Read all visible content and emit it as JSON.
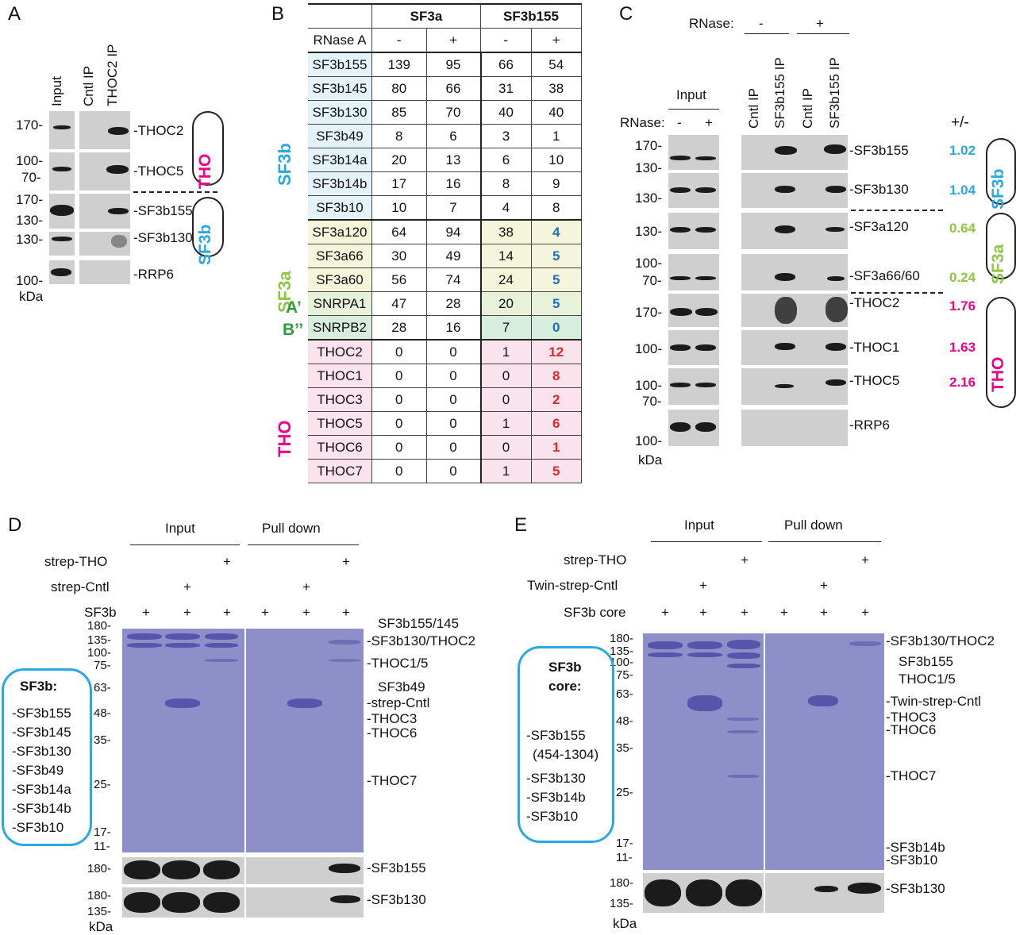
{
  "colors": {
    "sf3b": "#29a9e1",
    "sf3a": "#8dc63f",
    "tho": "#ec008c",
    "gel": "#8c8fc8",
    "red": "#e0262b",
    "blue": "#1a6fc4"
  },
  "panelA": {
    "letter": "A",
    "lanes": [
      "Input",
      "Cntl IP",
      "THOC2 IP"
    ],
    "markers": [
      "170-",
      "100-",
      "70-",
      "170-",
      "130-",
      "130-",
      "100-"
    ],
    "unit": "kDa",
    "bands": [
      "-THOC2",
      "-THOC5",
      "-SF3b155",
      "-SF3b130",
      "-RRP6"
    ],
    "groups": [
      "THO",
      "SF3b"
    ]
  },
  "panelB": {
    "letter": "B",
    "header": [
      "SF3a",
      "SF3b155"
    ],
    "rnase_label": "RNase A",
    "rnase": [
      "-",
      "+",
      "-",
      "+"
    ],
    "groups": [
      "SF3b",
      "SF3a",
      "A’",
      "B’’",
      "THO"
    ],
    "rows": [
      {
        "name": "SF3b155",
        "v": [
          "139",
          "95",
          "66",
          "54"
        ]
      },
      {
        "name": "SF3b145",
        "v": [
          "80",
          "66",
          "31",
          "38"
        ]
      },
      {
        "name": "SF3b130",
        "v": [
          "85",
          "70",
          "40",
          "40"
        ]
      },
      {
        "name": "SF3b49",
        "v": [
          "8",
          "6",
          "3",
          "1"
        ]
      },
      {
        "name": "SF3b14a",
        "v": [
          "20",
          "13",
          "6",
          "10"
        ]
      },
      {
        "name": "SF3b14b",
        "v": [
          "17",
          "16",
          "8",
          "9"
        ]
      },
      {
        "name": "SF3b10",
        "v": [
          "10",
          "7",
          "4",
          "8"
        ]
      },
      {
        "name": "SF3a120",
        "v": [
          "64",
          "94",
          "38",
          "4"
        ]
      },
      {
        "name": "SF3a66",
        "v": [
          "30",
          "49",
          "14",
          "5"
        ]
      },
      {
        "name": "SF3a60",
        "v": [
          "56",
          "74",
          "24",
          "5"
        ]
      },
      {
        "name": "SNRPA1",
        "v": [
          "47",
          "28",
          "20",
          "5"
        ]
      },
      {
        "name": "SNRPB2",
        "v": [
          "28",
          "16",
          "7",
          "0"
        ]
      },
      {
        "name": "THOC2",
        "v": [
          "0",
          "0",
          "1",
          "12"
        ]
      },
      {
        "name": "THOC1",
        "v": [
          "0",
          "0",
          "0",
          "8"
        ]
      },
      {
        "name": "THOC3",
        "v": [
          "0",
          "0",
          "0",
          "2"
        ]
      },
      {
        "name": "THOC5",
        "v": [
          "0",
          "0",
          "1",
          "6"
        ]
      },
      {
        "name": "THOC6",
        "v": [
          "0",
          "0",
          "0",
          "1"
        ]
      },
      {
        "name": "THOC7",
        "v": [
          "0",
          "0",
          "1",
          "5"
        ]
      }
    ]
  },
  "panelC": {
    "letter": "C",
    "rnase_label": "RNase:",
    "rnase_top": [
      "-",
      "+"
    ],
    "input_label": "Input",
    "rnase_input_label": "RNase:",
    "rnase_input": [
      "-",
      "+"
    ],
    "lanes": [
      "Cntl IP",
      "SF3b155 IP",
      "Cntl IP",
      "SF3b155 IP"
    ],
    "pm_label": "+/-",
    "markers": [
      "170-",
      "130-",
      "130-",
      "130-",
      "100-",
      "70-",
      "170-",
      "100-",
      "100-",
      "70-",
      "100-"
    ],
    "unit": "kDa",
    "bands": [
      "-SF3b155",
      "-SF3b130",
      "-SF3a120",
      "-SF3a66/60",
      "-THOC2",
      "-THOC1",
      "-THOC5",
      "-RRP6"
    ],
    "ratios": [
      "1.02",
      "1.04",
      "0.64",
      "0.24",
      "1.76",
      "1.63",
      "2.16"
    ],
    "groups": [
      "SF3b",
      "SF3a",
      "THO"
    ]
  },
  "panelD": {
    "letter": "D",
    "headers": [
      "Input",
      "Pull down"
    ],
    "rows": [
      {
        "label": "strep-THO",
        "marks": [
          "",
          "",
          "+",
          "",
          "",
          "+"
        ]
      },
      {
        "label": "strep-Cntl",
        "marks": [
          "",
          "+",
          "",
          "",
          "+",
          ""
        ]
      },
      {
        "label": "SF3b",
        "marks": [
          "+",
          "+",
          "+",
          "+",
          "+",
          "+"
        ]
      }
    ],
    "markers": [
      "180-",
      "135-",
      "100-",
      "75-",
      "63-",
      "48-",
      "35-",
      "25-",
      "17-",
      "11-"
    ],
    "blot_markers": [
      "180-",
      "180-",
      "135-"
    ],
    "unit": "kDa",
    "bands": [
      "SF3b155/145",
      "-SF3b130/THOC2",
      "-THOC1/5",
      "SF3b49",
      "-strep-Cntl",
      "-THOC3",
      "-THOC6",
      "-THOC7"
    ],
    "blot_bands": [
      "-SF3b155",
      "-SF3b130"
    ],
    "box_title": "SF3b:",
    "box_items": [
      "-SF3b155",
      "-SF3b145",
      "-SF3b130",
      "-SF3b49",
      "-SF3b14a",
      "-SF3b14b",
      "-SF3b10"
    ]
  },
  "panelE": {
    "letter": "E",
    "headers": [
      "Input",
      "Pull down"
    ],
    "rows": [
      {
        "label": "strep-THO",
        "marks": [
          "",
          "",
          "+",
          "",
          "",
          "+"
        ]
      },
      {
        "label": "Twin-strep-Cntl",
        "marks": [
          "",
          "+",
          "",
          "",
          "+",
          ""
        ]
      },
      {
        "label": "SF3b core",
        "marks": [
          "+",
          "+",
          "+",
          "+",
          "+",
          "+"
        ]
      }
    ],
    "markers": [
      "180-",
      "135-",
      "100-",
      "75-",
      "63-",
      "48-",
      "35-",
      "25-",
      "17-",
      "11-"
    ],
    "blot_markers": [
      "180-",
      "135-"
    ],
    "unit": "kDa",
    "bands": [
      "-SF3b130/THOC2",
      "SF3b155",
      "THOC1/5",
      "-Twin-strep-Cntl",
      "-THOC3",
      "-THOC6",
      "-THOC7",
      "-SF3b14b",
      "-SF3b10"
    ],
    "blot_bands": [
      "-SF3b130"
    ],
    "box_title_1": "SF3b",
    "box_title_2": "core:",
    "box_items": [
      "-SF3b155",
      "(454-1304)",
      "-SF3b130",
      "-SF3b14b",
      "-SF3b10"
    ]
  }
}
